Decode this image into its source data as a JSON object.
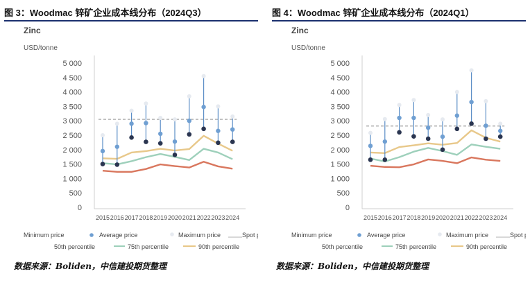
{
  "chart_data": [
    {
      "type": "range-marker",
      "figure_title": "图 3：Woodmac 锌矿企业成本线分布（2024Q3）",
      "chart_title": "Zinc",
      "ylabel": "USD/tonne",
      "ylim": [
        0,
        5000
      ],
      "yticks": [
        "5 000",
        "4 500",
        "4 000",
        "3 500",
        "3 000",
        "2 500",
        "2 000",
        "1 500",
        "1 000",
        "500",
        "0"
      ],
      "categories": [
        "2015",
        "2016",
        "2017",
        "2018",
        "2019",
        "2020",
        "2021",
        "2022",
        "2023",
        "2024"
      ],
      "spot_price": 3050,
      "series": [
        {
          "name": "Minimum price",
          "values": [
            1500,
            1480,
            2420,
            2270,
            2220,
            1820,
            2530,
            2720,
            2240,
            2270
          ]
        },
        {
          "name": "Average price",
          "values": [
            1950,
            2100,
            2900,
            2920,
            2550,
            2280,
            3000,
            3480,
            2650,
            2700
          ]
        },
        {
          "name": "Maximum price",
          "values": [
            2500,
            2900,
            3350,
            3600,
            3100,
            3050,
            3850,
            4550,
            3500,
            3150
          ]
        },
        {
          "name": "50th percentile",
          "values": [
            1270,
            1230,
            1230,
            1330,
            1490,
            1430,
            1380,
            1580,
            1420,
            1340
          ]
        },
        {
          "name": "75th percentile",
          "values": [
            1530,
            1490,
            1600,
            1740,
            1850,
            1750,
            1640,
            2030,
            1900,
            1670
          ]
        },
        {
          "name": "90th percentile",
          "values": [
            1700,
            1680,
            1900,
            1950,
            2030,
            1970,
            2020,
            2480,
            2210,
            1960
          ]
        }
      ],
      "source": "数据来源：Boliden，中信建投期货整理"
    },
    {
      "type": "range-marker",
      "figure_title": "图 4：Woodmac 锌矿企业成本线分布（2024Q1）",
      "chart_title": "Zinc",
      "ylabel": "USD/tonne",
      "ylim": [
        0,
        5000
      ],
      "yticks": [
        "5 000",
        "4 500",
        "4 000",
        "3 500",
        "3 000",
        "2 500",
        "2 000",
        "1 500",
        "1 000",
        "500",
        "0"
      ],
      "categories": [
        "2015",
        "2016",
        "2017",
        "2018",
        "2019",
        "2020",
        "2021",
        "2022",
        "2023",
        "2024"
      ],
      "spot_price": 2820,
      "series": [
        {
          "name": "Minimum price",
          "values": [
            1650,
            1650,
            2600,
            2460,
            2380,
            2000,
            2720,
            2900,
            2380,
            2450
          ]
        },
        {
          "name": "Average price",
          "values": [
            2130,
            2280,
            3100,
            3100,
            2760,
            2450,
            3180,
            3650,
            2830,
            2650
          ]
        },
        {
          "name": "Maximum price",
          "values": [
            2580,
            3060,
            3550,
            3720,
            3200,
            3050,
            4000,
            4750,
            3680,
            2900
          ]
        },
        {
          "name": "50th percentile",
          "values": [
            1440,
            1400,
            1390,
            1490,
            1660,
            1610,
            1530,
            1730,
            1650,
            1610
          ]
        },
        {
          "name": "75th percentile",
          "values": [
            1690,
            1590,
            1740,
            1930,
            2060,
            1950,
            1820,
            2180,
            2100,
            2030
          ]
        },
        {
          "name": "90th percentile",
          "values": [
            1900,
            1880,
            2090,
            2150,
            2220,
            2170,
            2230,
            2670,
            2410,
            2280
          ]
        }
      ],
      "source": "数据来源：Boliden，中信建投期货整理"
    }
  ],
  "legend": {
    "min": "Minimum price",
    "avg": "Average price",
    "max": "Maximum price",
    "spot": "Spot p",
    "p50": "50th percentile",
    "p75": "75th percentile",
    "p90": "90th percentile"
  },
  "colors": {
    "min": "#2a3550",
    "avg": "#6f9fd2",
    "max": "#e6eaf0",
    "whisker": "#5b8ec6",
    "spot": "#b4b4b4",
    "p50": "#d9775e",
    "p75": "#9ed0bb",
    "p90": "#e8c88a",
    "title_rule": "#1a2f6e"
  }
}
